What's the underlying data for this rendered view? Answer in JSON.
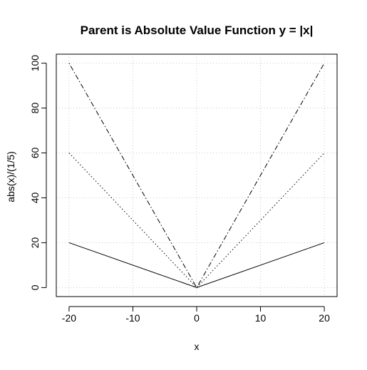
{
  "chart_data": {
    "type": "line",
    "title": "Parent is Absolute Value Function y = |x|",
    "xlabel": "x",
    "ylabel": "abs(x)/(1/5)",
    "xlim": [
      -22,
      22
    ],
    "ylim": [
      -4,
      104
    ],
    "xticks": [
      -20,
      -10,
      0,
      10,
      20
    ],
    "yticks": [
      0,
      20,
      40,
      60,
      80,
      100
    ],
    "grid": true,
    "legend": "none",
    "series": [
      {
        "x": [
          -20,
          0,
          20
        ],
        "y": [
          20,
          0,
          20
        ],
        "style": "solid"
      },
      {
        "x": [
          -20,
          0,
          20
        ],
        "y": [
          60,
          0,
          60
        ],
        "style": "dotted"
      },
      {
        "x": [
          -20,
          0,
          20
        ],
        "y": [
          100,
          0,
          100
        ],
        "style": "dashdot"
      }
    ],
    "colors": {
      "line": "#000000",
      "grid": "#c8c8c8",
      "box": "#000000"
    }
  }
}
